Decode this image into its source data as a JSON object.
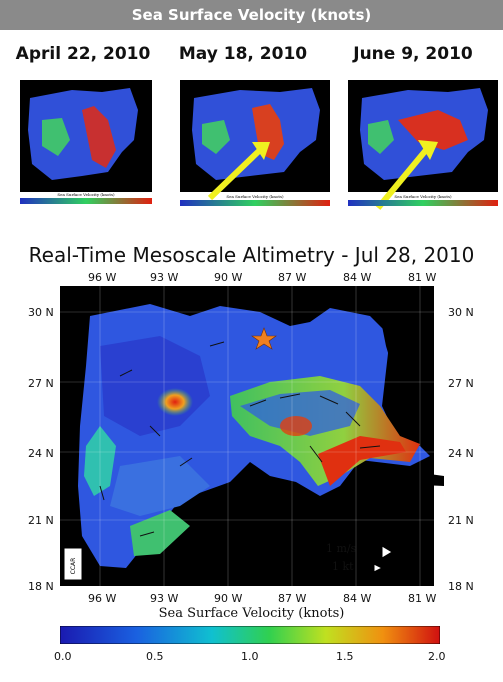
{
  "banner": {
    "title": "Sea Surface Velocity (knots)"
  },
  "thumbnails": [
    {
      "date": "April 22, 2010"
    },
    {
      "date": "May 18, 2010"
    },
    {
      "date": "June 9, 2010"
    }
  ],
  "thumb_colorbar_label": "Sea Surface Velocity (knots)",
  "main_map": {
    "title": "Real-Time Mesoscale Altimetry - Jul 28, 2010",
    "x_ticks": [
      "96 W",
      "93 W",
      "90 W",
      "87 W",
      "84 W",
      "81 W"
    ],
    "y_ticks": [
      "30 N",
      "27 N",
      "24 N",
      "21 N",
      "18 N"
    ],
    "legend": {
      "ms": "1 m/s",
      "kt": "1 kt"
    },
    "badge": "CCAR",
    "colorbar": {
      "label": "Sea Surface Velocity (knots)",
      "ticks": [
        "0.0",
        "0.5",
        "1.0",
        "1.5",
        "2.0"
      ],
      "range": [
        0,
        2.0
      ]
    },
    "marker": "star-icon",
    "colors": {
      "land": "#000000",
      "water_low": "#2a3ad8",
      "water_mid": "#2fd05a",
      "water_high": "#e02010",
      "star": "#f08020"
    }
  }
}
